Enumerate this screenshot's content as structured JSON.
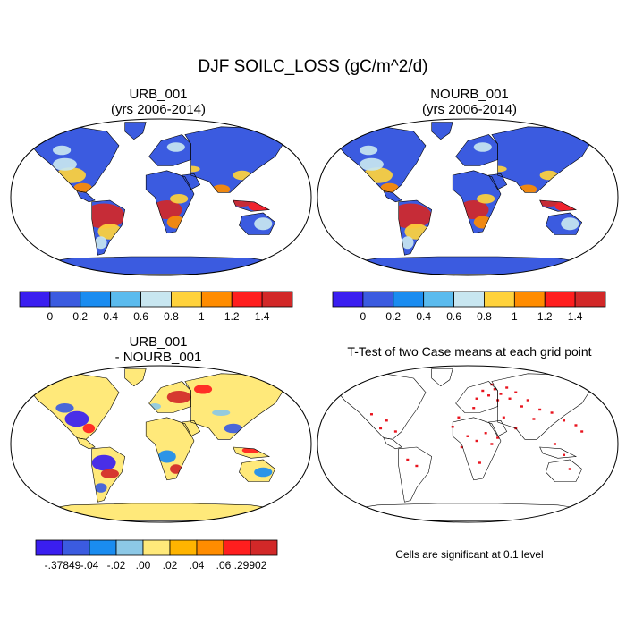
{
  "title": "DJF SOILC_LOSS (gC/m^2/d)",
  "panels": [
    {
      "line1": "URB_001",
      "line2": "(yrs 2006-2014)"
    },
    {
      "line1": "NOURB_001",
      "line2": "(yrs 2006-2014)"
    },
    {
      "line1": "URB_001",
      "line2": "- NOURB_001"
    },
    {
      "line1": "T-Test of two Case means at each grid point"
    }
  ],
  "note": "Cells are significant at 0.1 level",
  "colors": {
    "ocean": "#ffffff",
    "land_low": "#3b5be0",
    "diff_land": "#ffe97a",
    "signif": "#e8141e"
  },
  "chart_data": [
    {
      "type": "heatmap",
      "title": "URB_001 (yrs 2006-2014)",
      "projection": "Robinson",
      "colorbar": {
        "tick_labels": [
          "0",
          "0.2",
          "0.4",
          "0.6",
          "0.8",
          "1",
          "1.2",
          "1.4"
        ],
        "colors": [
          "#3a1ef0",
          "#3b5be0",
          "#1a8cf0",
          "#5bbbee",
          "#c8e6f0",
          "#ffd23c",
          "#ff8c00",
          "#ff1e1e",
          "#d22828"
        ]
      }
    },
    {
      "type": "heatmap",
      "title": "NOURB_001 (yrs 2006-2014)",
      "projection": "Robinson",
      "colorbar": {
        "tick_labels": [
          "0",
          "0.2",
          "0.4",
          "0.6",
          "0.8",
          "1",
          "1.2",
          "1.4"
        ],
        "colors": [
          "#3a1ef0",
          "#3b5be0",
          "#1a8cf0",
          "#5bbbee",
          "#c8e6f0",
          "#ffd23c",
          "#ff8c00",
          "#ff1e1e",
          "#d22828"
        ]
      }
    },
    {
      "type": "heatmap",
      "title": "URB_001 - NOURB_001",
      "projection": "Robinson",
      "colorbar": {
        "tick_labels": [
          "-.37849",
          "-.04",
          "-.02",
          ".00",
          ".02",
          ".04",
          ".06",
          ".29902"
        ],
        "colors": [
          "#3a1ef0",
          "#3b5be0",
          "#1a8cf0",
          "#8cc8e6",
          "#ffe97a",
          "#ffb400",
          "#ff8c00",
          "#ff1e1e",
          "#d22828"
        ]
      }
    },
    {
      "type": "heatmap",
      "title": "T-Test of two Case means at each grid point",
      "projection": "Robinson",
      "significance_level": 0.1
    }
  ]
}
